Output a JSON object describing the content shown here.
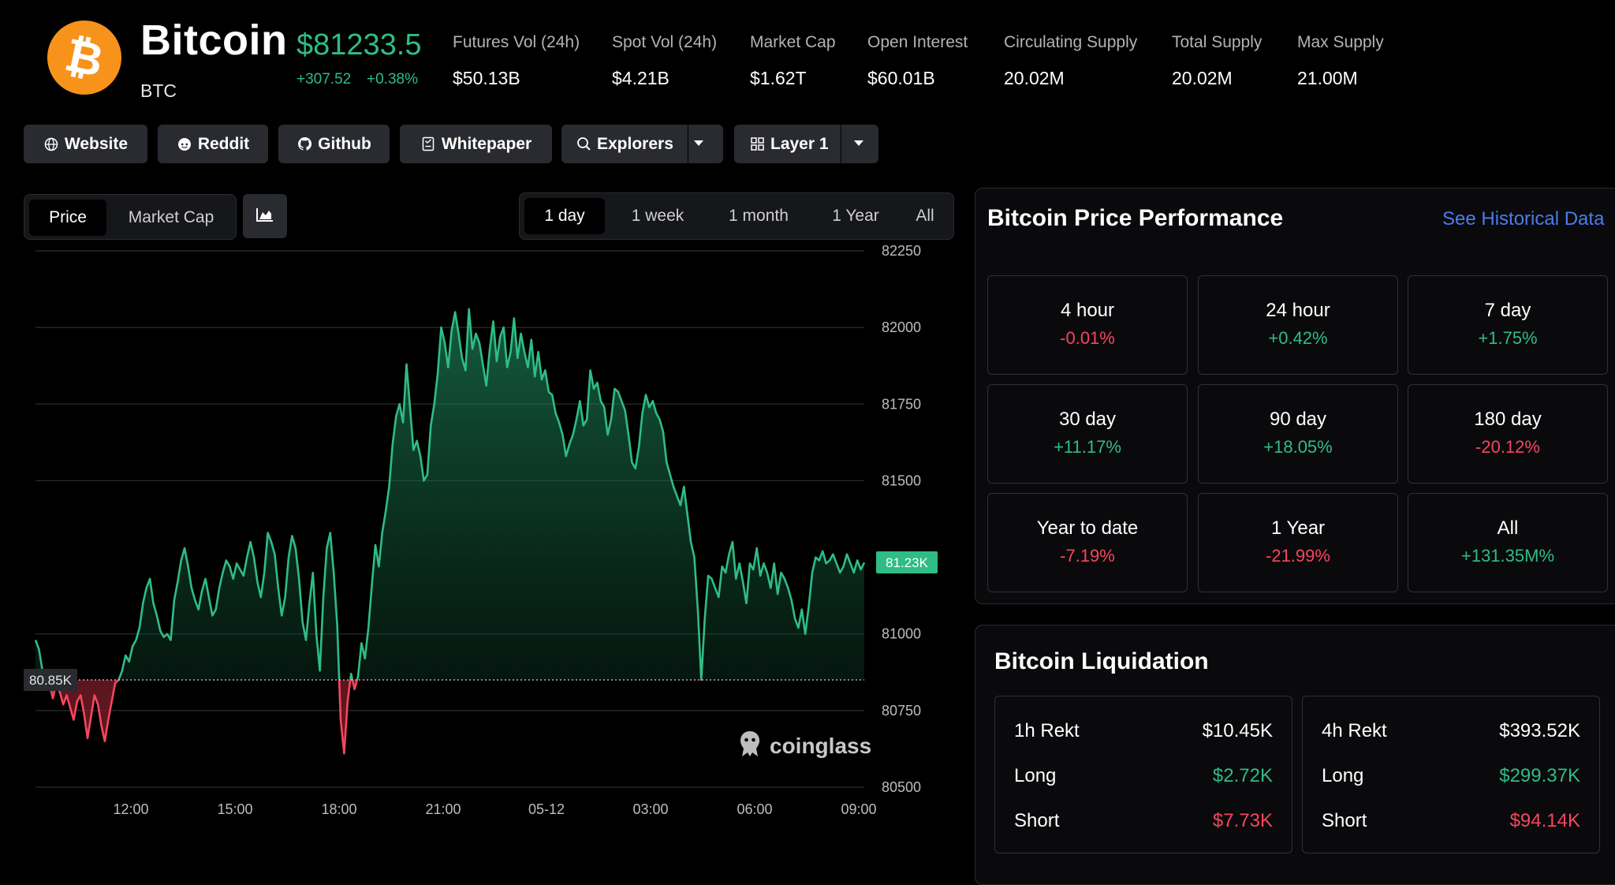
{
  "coin": {
    "name": "Bitcoin",
    "symbol": "BTC",
    "price": "$81233.5",
    "change_abs": "+307.52",
    "change_pct": "+0.38%",
    "logo_glyph": "₿"
  },
  "stats": [
    {
      "label": "Futures Vol (24h)",
      "value": "$50.13B"
    },
    {
      "label": "Spot Vol (24h)",
      "value": "$4.21B"
    },
    {
      "label": "Market Cap",
      "value": "$1.62T"
    },
    {
      "label": "Open Interest",
      "value": "$60.01B"
    },
    {
      "label": "Circulating Supply",
      "value": "20.02M"
    },
    {
      "label": "Total Supply",
      "value": "20.02M"
    },
    {
      "label": "Max Supply",
      "value": "21.00M"
    }
  ],
  "links": [
    {
      "label": "Website",
      "icon": "globe-icon"
    },
    {
      "label": "Reddit",
      "icon": "reddit-icon"
    },
    {
      "label": "Github",
      "icon": "github-icon"
    },
    {
      "label": "Whitepaper",
      "icon": "document-icon"
    },
    {
      "label": "Explorers",
      "icon": "search-icon"
    },
    {
      "label": "Layer 1",
      "icon": "grid-icon"
    }
  ],
  "chart_tabs": {
    "price": "Price",
    "market_cap": "Market Cap",
    "active": "Price"
  },
  "range_tabs": {
    "items": [
      "1 day",
      "1 week",
      "1 month",
      "1 Year",
      "All"
    ],
    "active": "1 day"
  },
  "chart_data": {
    "type": "area",
    "title": "",
    "y_ticks": [
      "82250",
      "82000",
      "81750",
      "81500",
      "81000",
      "80750",
      "80500"
    ],
    "y_tick_values": [
      82250,
      82000,
      81750,
      81500,
      81000,
      80750,
      80500
    ],
    "ylim": [
      80500,
      82250
    ],
    "x_ticks": [
      "12:00",
      "15:00",
      "18:00",
      "21:00",
      "05-12",
      "03:00",
      "06:00",
      "09:00"
    ],
    "baseline": 80850,
    "baseline_label": "80.85K",
    "current_label": "81.23K",
    "current_value": 81233.5,
    "up_color": "#2fbd85",
    "down_color": "#f6465d",
    "watermark": "coinglass",
    "series": [
      {
        "values": [
          80980,
          80950,
          80880,
          80820,
          80840,
          80790,
          80840,
          80810,
          80770,
          80800,
          80760,
          80720,
          80780,
          80800,
          80740,
          80660,
          80730,
          80800,
          80770,
          80700,
          80650,
          80720,
          80780,
          80840,
          80850,
          80880,
          80930,
          80910,
          80960,
          80980,
          81020,
          81100,
          81150,
          81180,
          81100,
          81060,
          81010,
          80990,
          81000,
          80980,
          81110,
          81170,
          81240,
          81280,
          81220,
          81150,
          81110,
          81080,
          81140,
          81180,
          81120,
          81060,
          81080,
          81150,
          81200,
          81240,
          81220,
          81180,
          81230,
          81210,
          81190,
          81250,
          81300,
          81250,
          81170,
          81120,
          81200,
          81330,
          81300,
          81260,
          81150,
          81060,
          81120,
          81250,
          81320,
          81280,
          81180,
          81040,
          80980,
          81100,
          81200,
          81000,
          80880,
          81120,
          81280,
          81330,
          81200,
          81030,
          80720,
          80610,
          80780,
          80870,
          80820,
          80860,
          80970,
          80920,
          81020,
          81160,
          81290,
          81220,
          81330,
          81400,
          81480,
          81620,
          81710,
          81750,
          81690,
          81880,
          81740,
          81600,
          81630,
          81580,
          81500,
          81520,
          81680,
          81750,
          81850,
          82000,
          81950,
          81870,
          81990,
          82050,
          81980,
          81900,
          81860,
          82060,
          81930,
          81980,
          81950,
          81880,
          81810,
          81930,
          82020,
          81890,
          81970,
          82000,
          81870,
          81920,
          82030,
          81900,
          81980,
          81920,
          81870,
          81960,
          81840,
          81920,
          81830,
          81860,
          81790,
          81780,
          81720,
          81690,
          81650,
          81580,
          81620,
          81650,
          81700,
          81760,
          81680,
          81700,
          81860,
          81800,
          81820,
          81760,
          81740,
          81650,
          81700,
          81800,
          81790,
          81760,
          81730,
          81650,
          81560,
          81540,
          81610,
          81720,
          81780,
          81740,
          81760,
          81720,
          81700,
          81660,
          81560,
          81520,
          81480,
          81450,
          81420,
          81480,
          81390,
          81300,
          81250,
          81080,
          80850,
          81050,
          81190,
          81180,
          81150,
          81120,
          81220,
          81200,
          81260,
          81300,
          81180,
          81230,
          81170,
          81100,
          81230,
          81210,
          81280,
          81190,
          81230,
          81200,
          81150,
          81230,
          81130,
          81200,
          81180,
          81150,
          81110,
          81050,
          81020,
          81080,
          81000,
          81090,
          81200,
          81250,
          81240,
          81270,
          81230,
          81240,
          81260,
          81230,
          81200,
          81220,
          81260,
          81230,
          81200,
          81240,
          81210,
          81233
        ]
      }
    ]
  },
  "performance": {
    "title": "Bitcoin Price Performance",
    "link": "See Historical Data",
    "items": [
      {
        "label": "4 hour",
        "value": "-0.01%",
        "dir": "neg"
      },
      {
        "label": "24 hour",
        "value": "+0.42%",
        "dir": "pos"
      },
      {
        "label": "7 day",
        "value": "+1.75%",
        "dir": "pos"
      },
      {
        "label": "30 day",
        "value": "+11.17%",
        "dir": "pos"
      },
      {
        "label": "90 day",
        "value": "+18.05%",
        "dir": "pos"
      },
      {
        "label": "180 day",
        "value": "-20.12%",
        "dir": "neg"
      },
      {
        "label": "Year to date",
        "value": "-7.19%",
        "dir": "neg"
      },
      {
        "label": "1 Year",
        "value": "-21.99%",
        "dir": "neg"
      },
      {
        "label": "All",
        "value": "+131.35M%",
        "dir": "pos"
      }
    ]
  },
  "liquidation": {
    "title": "Bitcoin Liquidation",
    "cards": [
      {
        "label": "1h Rekt",
        "total": "$10.45K",
        "long_label": "Long",
        "long": "$2.72K",
        "short_label": "Short",
        "short": "$7.73K"
      },
      {
        "label": "4h Rekt",
        "total": "$393.52K",
        "long_label": "Long",
        "long": "$299.37K",
        "short_label": "Short",
        "short": "$94.14K"
      }
    ]
  }
}
